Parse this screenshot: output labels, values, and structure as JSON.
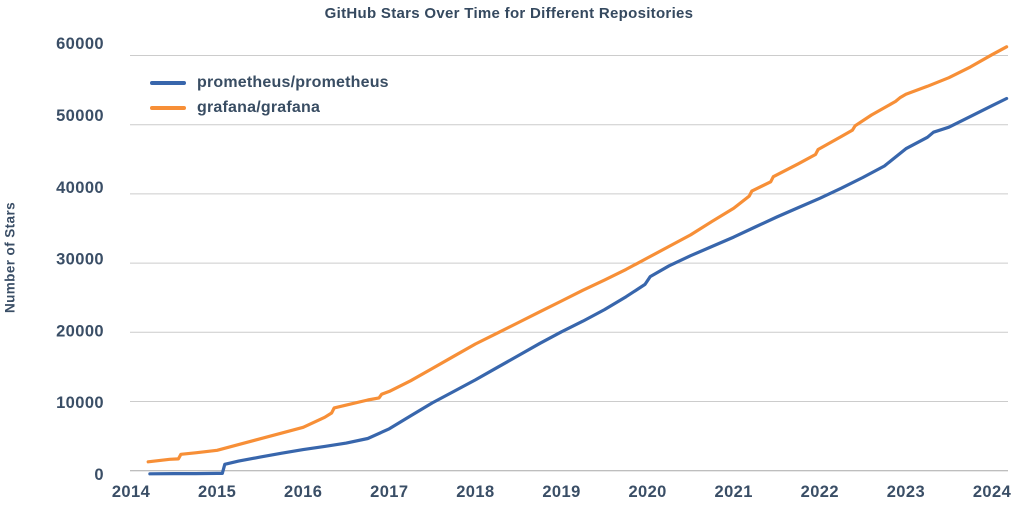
{
  "chart_data": {
    "type": "line",
    "title": "GitHub Stars Over Time for Different Repositories",
    "xlabel": "",
    "ylabel": "Number of Stars",
    "x_ticks": [
      2014,
      2015,
      2016,
      2017,
      2018,
      2019,
      2020,
      2021,
      2022,
      2023,
      2024
    ],
    "y_ticks": [
      0,
      10000,
      20000,
      30000,
      40000,
      50000,
      60000
    ],
    "xlim": [
      2013.99,
      2024.19
    ],
    "ylim": [
      0,
      62000
    ],
    "grid": "horizontal",
    "legend_position": "top-left",
    "text_color": "#3a4e66",
    "grid_color": "#cccccc",
    "axis_line_color": "#a8a8a8",
    "series": [
      {
        "name": "prometheus/prometheus",
        "color": "#3866ac",
        "points": [
          [
            2014.22,
            30
          ],
          [
            2014.5,
            50
          ],
          [
            2014.75,
            60
          ],
          [
            2015.0,
            80
          ],
          [
            2015.06,
            90
          ],
          [
            2015.09,
            1350
          ],
          [
            2015.25,
            1800
          ],
          [
            2015.5,
            2350
          ],
          [
            2015.75,
            2900
          ],
          [
            2016.0,
            3400
          ],
          [
            2016.25,
            3850
          ],
          [
            2016.5,
            4300
          ],
          [
            2016.75,
            4950
          ],
          [
            2017.0,
            6300
          ],
          [
            2017.25,
            8100
          ],
          [
            2017.5,
            9900
          ],
          [
            2017.75,
            11500
          ],
          [
            2018.0,
            13100
          ],
          [
            2018.25,
            14800
          ],
          [
            2018.5,
            16500
          ],
          [
            2018.75,
            18200
          ],
          [
            2019.0,
            19800
          ],
          [
            2019.25,
            21300
          ],
          [
            2019.5,
            22900
          ],
          [
            2019.75,
            24700
          ],
          [
            2019.97,
            26400
          ],
          [
            2020.03,
            27500
          ],
          [
            2020.25,
            29000
          ],
          [
            2020.5,
            30400
          ],
          [
            2020.75,
            31700
          ],
          [
            2021.0,
            33000
          ],
          [
            2021.25,
            34400
          ],
          [
            2021.5,
            35800
          ],
          [
            2021.75,
            37100
          ],
          [
            2022.0,
            38400
          ],
          [
            2022.25,
            39800
          ],
          [
            2022.5,
            41300
          ],
          [
            2022.75,
            42900
          ],
          [
            2023.0,
            45300
          ],
          [
            2023.25,
            46900
          ],
          [
            2023.32,
            47600
          ],
          [
            2023.5,
            48300
          ],
          [
            2023.75,
            49800
          ],
          [
            2024.0,
            51300
          ],
          [
            2024.17,
            52300
          ]
        ]
      },
      {
        "name": "grafana/grafana",
        "color": "#f78f37",
        "points": [
          [
            2014.2,
            1700
          ],
          [
            2014.45,
            2050
          ],
          [
            2014.55,
            2100
          ],
          [
            2014.58,
            2750
          ],
          [
            2014.75,
            2950
          ],
          [
            2015.0,
            3300
          ],
          [
            2015.25,
            4100
          ],
          [
            2015.5,
            4900
          ],
          [
            2015.75,
            5700
          ],
          [
            2016.0,
            6500
          ],
          [
            2016.25,
            7900
          ],
          [
            2016.33,
            8500
          ],
          [
            2016.36,
            9200
          ],
          [
            2016.5,
            9600
          ],
          [
            2016.75,
            10300
          ],
          [
            2016.88,
            10600
          ],
          [
            2016.91,
            11100
          ],
          [
            2017.0,
            11500
          ],
          [
            2017.25,
            13000
          ],
          [
            2017.5,
            14700
          ],
          [
            2017.75,
            16400
          ],
          [
            2018.0,
            18100
          ],
          [
            2018.25,
            19600
          ],
          [
            2018.5,
            21100
          ],
          [
            2018.75,
            22600
          ],
          [
            2019.0,
            24100
          ],
          [
            2019.25,
            25600
          ],
          [
            2019.5,
            27000
          ],
          [
            2019.75,
            28500
          ],
          [
            2020.0,
            30100
          ],
          [
            2020.25,
            31700
          ],
          [
            2020.5,
            33300
          ],
          [
            2020.75,
            35200
          ],
          [
            2021.0,
            37000
          ],
          [
            2021.18,
            38700
          ],
          [
            2021.21,
            39400
          ],
          [
            2021.43,
            40700
          ],
          [
            2021.46,
            41400
          ],
          [
            2021.75,
            43200
          ],
          [
            2021.95,
            44500
          ],
          [
            2021.98,
            45200
          ],
          [
            2022.25,
            47000
          ],
          [
            2022.38,
            47900
          ],
          [
            2022.41,
            48500
          ],
          [
            2022.6,
            50000
          ],
          [
            2022.88,
            51900
          ],
          [
            2022.93,
            52400
          ],
          [
            2023.0,
            52900
          ],
          [
            2023.25,
            54000
          ],
          [
            2023.5,
            55200
          ],
          [
            2023.75,
            56700
          ],
          [
            2024.0,
            58400
          ],
          [
            2024.17,
            59500
          ]
        ]
      }
    ]
  }
}
